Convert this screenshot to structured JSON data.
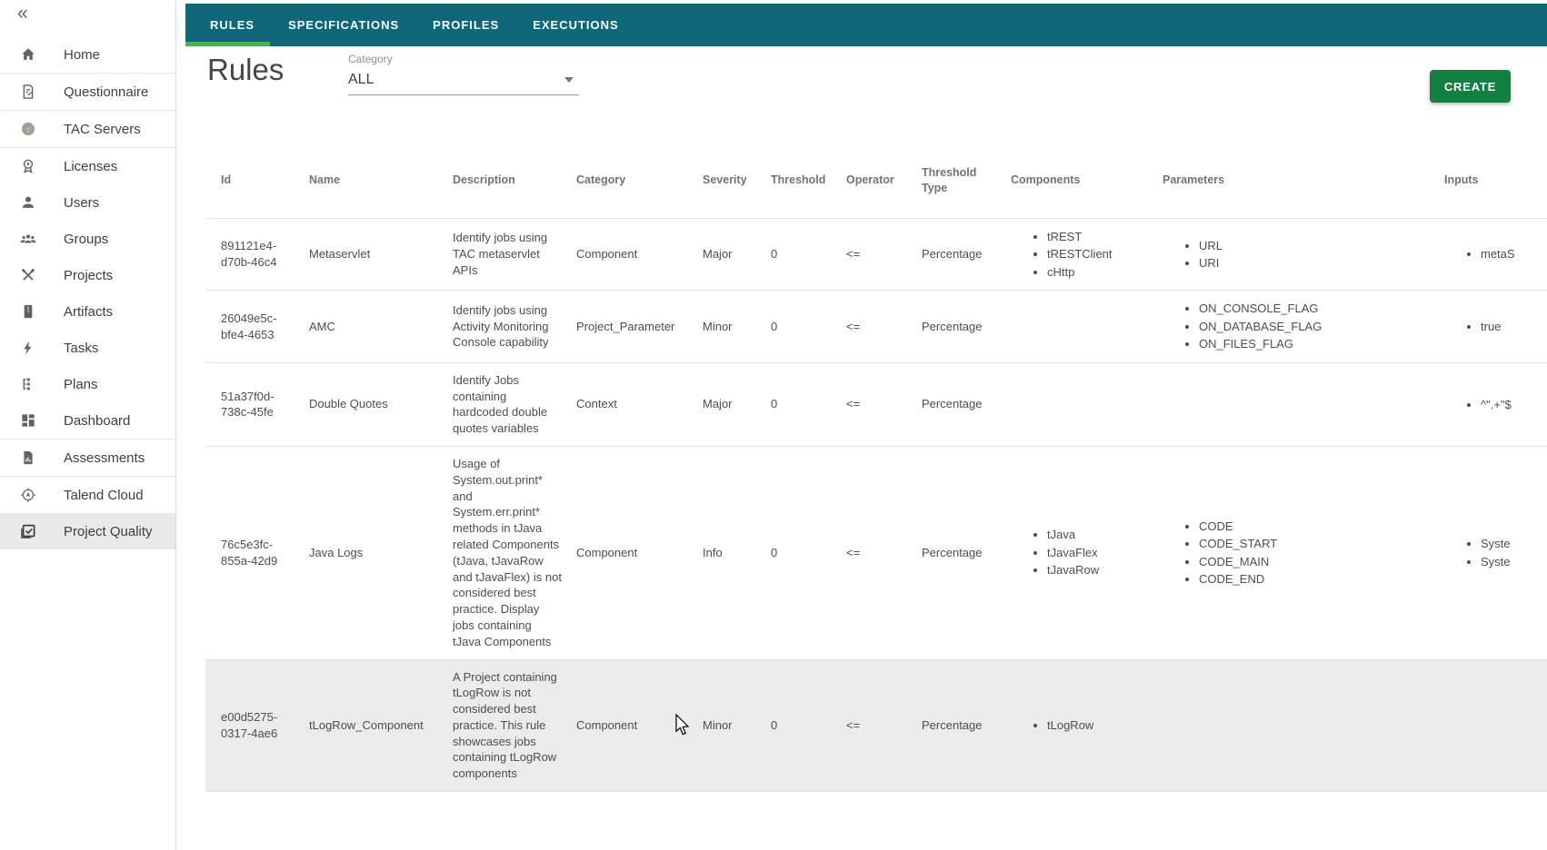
{
  "colors": {
    "topbar_teal": "#0E6879",
    "active_tab_green": "#4CAF50",
    "create_button_green": "#118142",
    "highlight_row_gray": "#EBEBEB"
  },
  "sidebar": {
    "collapse_icon": "«",
    "items": [
      {
        "label": "Home",
        "icon": "home-icon"
      },
      {
        "label": "Questionnaire",
        "icon": "questionnaire-icon",
        "divider": true
      },
      {
        "label": "TAC Servers",
        "icon": "tac-servers-icon",
        "divider": true
      },
      {
        "label": "Licenses",
        "icon": "licenses-icon",
        "divider": true
      },
      {
        "label": "Users",
        "icon": "users-icon"
      },
      {
        "label": "Groups",
        "icon": "groups-icon"
      },
      {
        "label": "Projects",
        "icon": "projects-icon"
      },
      {
        "label": "Artifacts",
        "icon": "artifacts-icon"
      },
      {
        "label": "Tasks",
        "icon": "tasks-icon"
      },
      {
        "label": "Plans",
        "icon": "plans-icon"
      },
      {
        "label": "Dashboard",
        "icon": "dashboard-icon"
      },
      {
        "label": "Assessments",
        "icon": "assessments-icon",
        "divider": true
      },
      {
        "label": "Talend Cloud",
        "icon": "talend-cloud-icon",
        "divider": true
      },
      {
        "label": "Project Quality",
        "icon": "project-quality-icon",
        "selected": true
      }
    ]
  },
  "topbar": {
    "tabs": [
      {
        "label": "RULES",
        "active": true
      },
      {
        "label": "SPECIFICATIONS"
      },
      {
        "label": "PROFILES"
      },
      {
        "label": "EXECUTIONS"
      }
    ]
  },
  "header": {
    "title": "Rules",
    "category_label": "Category",
    "category_value": "ALL",
    "create_label": "CREATE"
  },
  "table": {
    "columns": [
      "Id",
      "Name",
      "Description",
      "Category",
      "Severity",
      "Threshold",
      "Operator",
      "Threshold Type",
      "Components",
      "Parameters",
      "Inputs"
    ],
    "rows": [
      {
        "id": "891121e4-d70b-46c4",
        "name": "Metaservlet",
        "description": "Identify jobs using TAC metaservlet APIs",
        "category": "Component",
        "severity": "Major",
        "threshold": "0",
        "operator": "<=",
        "threshold_type": "Percentage",
        "components": [
          "tREST",
          "tRESTClient",
          "cHttp"
        ],
        "parameters": [
          "URL",
          "URI"
        ],
        "inputs": [
          "metaS"
        ]
      },
      {
        "id": "26049e5c-bfe4-4653",
        "name": "AMC",
        "description": "Identify jobs using Activity Monitoring Console capability",
        "category": "Project_Parameter",
        "severity": "Minor",
        "threshold": "0",
        "operator": "<=",
        "threshold_type": "Percentage",
        "components": [],
        "parameters": [
          "ON_CONSOLE_FLAG",
          "ON_DATABASE_FLAG",
          "ON_FILES_FLAG"
        ],
        "inputs": [
          "true"
        ]
      },
      {
        "id": "51a37f0d-738c-45fe",
        "name": "Double Quotes",
        "description": "Identify Jobs containing hardcoded double quotes variables",
        "category": "Context",
        "severity": "Major",
        "threshold": "0",
        "operator": "<=",
        "threshold_type": "Percentage",
        "components": [],
        "parameters": [],
        "inputs": [
          "^\".+\"$"
        ]
      },
      {
        "id": "76c5e3fc-855a-42d9",
        "name": "Java Logs",
        "description": "Usage of System.out.print* and System.err.print* methods in tJava related Components (tJava, tJavaRow and tJavaFlex) is not considered best practice. Display jobs containing tJava Components",
        "category": "Component",
        "severity": "Info",
        "threshold": "0",
        "operator": "<=",
        "threshold_type": "Percentage",
        "components": [
          "tJava",
          "tJavaFlex",
          "tJavaRow"
        ],
        "parameters": [
          "CODE",
          "CODE_START",
          "CODE_MAIN",
          "CODE_END"
        ],
        "inputs": [
          "Syste",
          "Syste"
        ]
      },
      {
        "id": "e00d5275-0317-4ae6",
        "name": "tLogRow_Component",
        "description": "A Project containing tLogRow is not considered best practice. This rule showcases jobs containing tLogRow components",
        "category": "Component",
        "severity": "Minor",
        "threshold": "0",
        "operator": "<=",
        "threshold_type": "Percentage",
        "components": [
          "tLogRow"
        ],
        "parameters": [],
        "inputs": [],
        "highlighted": true
      }
    ]
  }
}
